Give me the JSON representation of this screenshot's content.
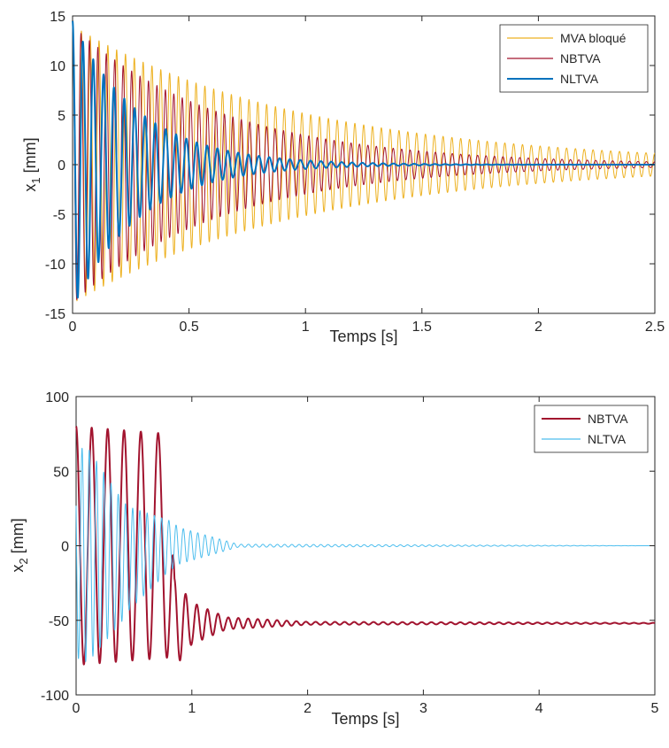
{
  "chart_data": [
    {
      "type": "line",
      "xlabel": "Temps [s]",
      "ylabel_main": "x",
      "ylabel_sub": "1",
      "ylabel_unit": " [mm]",
      "xlim": [
        0,
        2.5
      ],
      "ylim": [
        -15,
        15
      ],
      "xticks": [
        "0",
        "0.5",
        "1",
        "1.5",
        "2",
        "2.5"
      ],
      "yticks": [
        "-15",
        "-10",
        "-5",
        "0",
        "5",
        "10",
        "15"
      ],
      "grid": false,
      "legend_position": "top-right",
      "series": [
        {
          "name": "MVA bloqué",
          "color": "#EDB120",
          "amplitude": 14,
          "decay_per_s": 1.0,
          "frequency_hz": 26.4,
          "offset": 0,
          "line_weight": "thin"
        },
        {
          "name": "NBTVA",
          "color": "#A2142F",
          "amplitude": 14,
          "decay_per_s": 1.55,
          "frequency_hz": 27.6,
          "offset": 0,
          "line_weight": "thin"
        },
        {
          "name": "NLTVA",
          "color": "#0072BD",
          "amplitude": 14.5,
          "decay_per_s": 3.5,
          "frequency_hz": 22.5,
          "offset": 0,
          "line_weight": "thick"
        }
      ]
    },
    {
      "type": "line",
      "xlabel": "Temps [s]",
      "ylabel_main": "x",
      "ylabel_sub": "2",
      "ylabel_unit": " [mm]",
      "xlim": [
        0,
        5
      ],
      "ylim": [
        -100,
        100
      ],
      "xticks": [
        "0",
        "1",
        "2",
        "3",
        "4",
        "5"
      ],
      "yticks": [
        "-100",
        "-50",
        "0",
        "50",
        "100"
      ],
      "grid": false,
      "legend_position": "top-right",
      "series": [
        {
          "name": "NBTVA",
          "color": "#A2142F",
          "line_weight": "thick",
          "envelope": [
            [
              0,
              80
            ],
            [
              0.8,
              75
            ],
            [
              0.85,
              30
            ],
            [
              1.0,
              14
            ],
            [
              1.3,
              4
            ],
            [
              2.0,
              1
            ],
            [
              5,
              0.3
            ]
          ],
          "offset": [
            [
              0,
              0
            ],
            [
              0.8,
              0
            ],
            [
              0.85,
              -52
            ],
            [
              5,
              -52
            ]
          ],
          "frequency": [
            [
              0,
              7.5
            ],
            [
              0.8,
              6.5
            ],
            [
              0.85,
              10
            ],
            [
              1.5,
              12
            ],
            [
              5,
              12
            ]
          ]
        },
        {
          "name": "NLTVA",
          "color": "#4DBEEE",
          "line_weight": "thin",
          "envelope": [
            [
              0,
              70
            ],
            [
              0.1,
              72
            ],
            [
              0.45,
              35
            ],
            [
              0.9,
              12
            ],
            [
              1.4,
              1
            ],
            [
              5,
              0
            ]
          ],
          "offset": [
            [
              0,
              -5
            ],
            [
              0.4,
              -10
            ],
            [
              0.8,
              0
            ],
            [
              5,
              0
            ]
          ],
          "frequency": [
            [
              0,
              16
            ],
            [
              1.4,
              16
            ],
            [
              5,
              16
            ]
          ]
        }
      ]
    }
  ]
}
